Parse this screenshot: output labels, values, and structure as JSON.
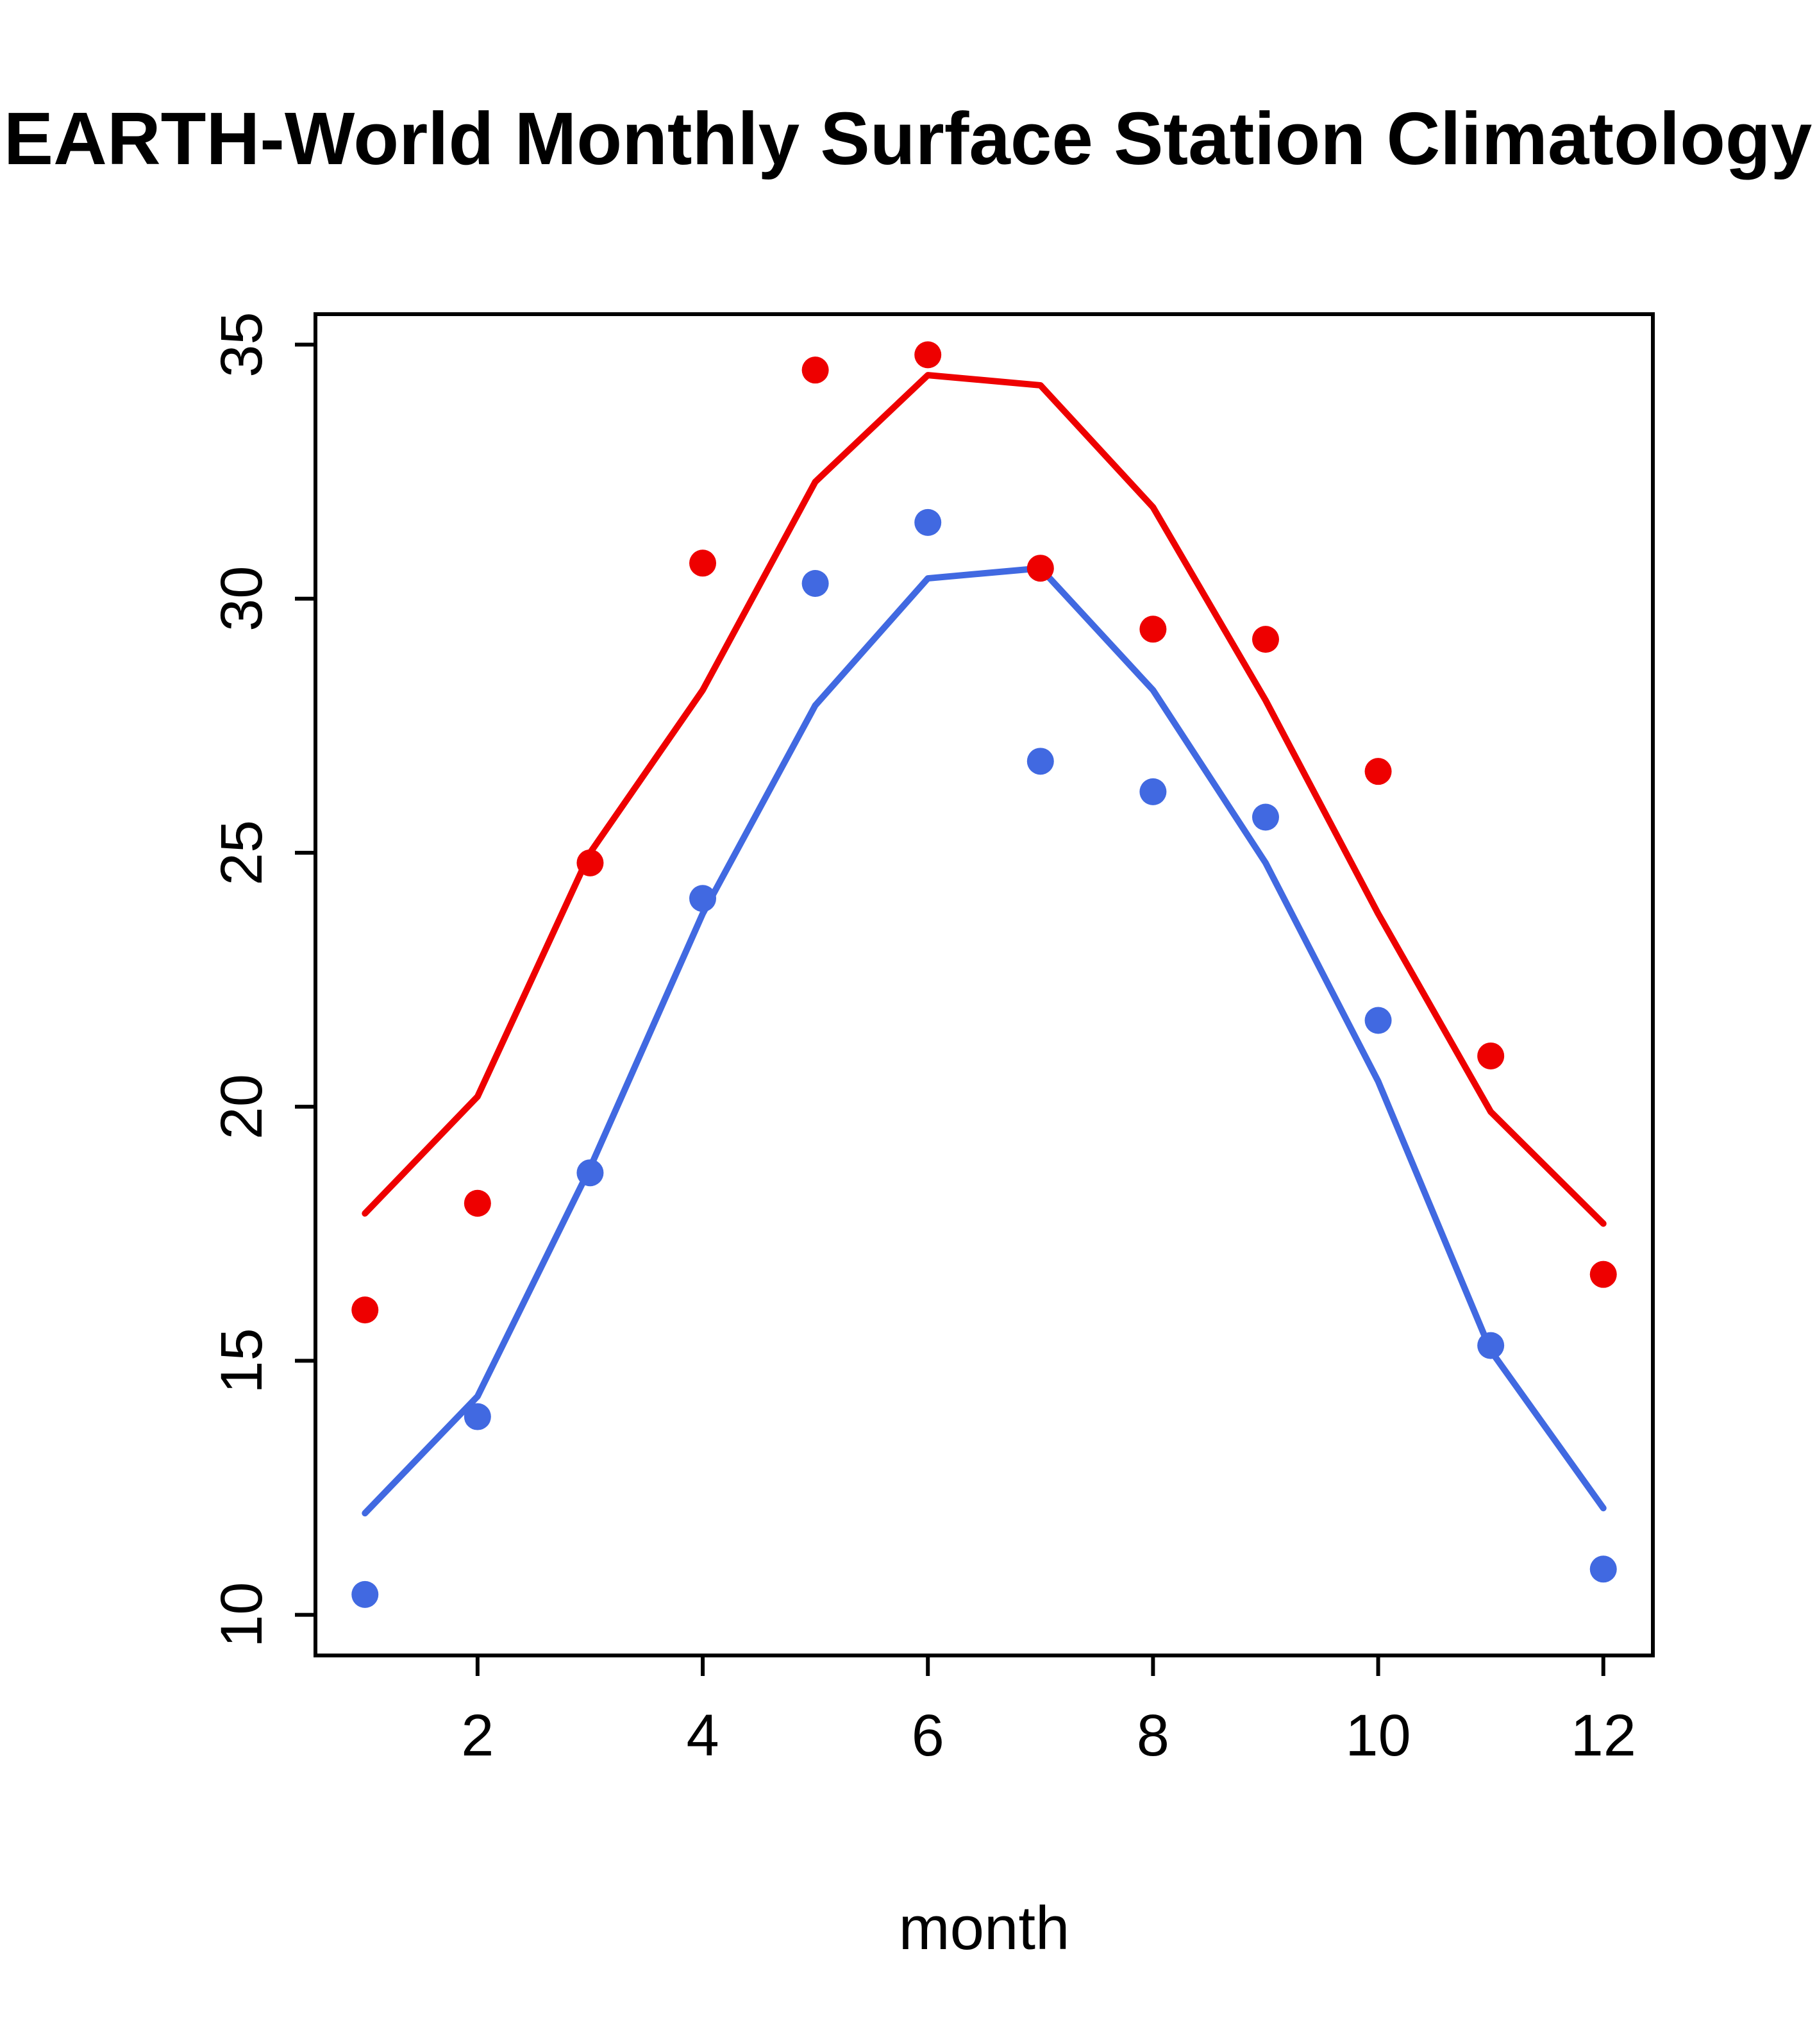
{
  "title": "EARTH-World Monthly Surface Station Climatology",
  "chart_data": {
    "type": "line",
    "title": "EARTH-World Monthly Surface Station Climatology",
    "xlabel": "month",
    "ylabel": "",
    "x": [
      1,
      2,
      3,
      4,
      5,
      6,
      7,
      8,
      9,
      10,
      11,
      12
    ],
    "series": [
      {
        "name": "red-line",
        "style": "line",
        "color": "#ee0000",
        "values": [
          17.9,
          20.2,
          25.0,
          28.2,
          32.3,
          34.4,
          34.2,
          31.8,
          28.0,
          23.8,
          19.9,
          17.7
        ]
      },
      {
        "name": "blue-line",
        "style": "line",
        "color": "#4169e1",
        "values": [
          12.0,
          14.3,
          18.8,
          23.8,
          27.9,
          30.4,
          30.6,
          28.2,
          24.8,
          20.5,
          15.2,
          12.1
        ]
      },
      {
        "name": "red-points",
        "style": "points",
        "color": "#ee0000",
        "values": [
          16.0,
          18.1,
          24.8,
          30.7,
          34.5,
          34.8,
          30.6,
          29.4,
          29.2,
          26.6,
          21.0,
          16.7
        ]
      },
      {
        "name": "blue-points",
        "style": "points",
        "color": "#4169e1",
        "values": [
          10.4,
          13.9,
          18.7,
          24.1,
          30.3,
          31.5,
          26.8,
          26.2,
          25.7,
          21.7,
          15.3,
          10.9
        ]
      }
    ],
    "xticks": [
      "2",
      "4",
      "6",
      "8",
      "10",
      "12"
    ],
    "xtick_values": [
      2,
      4,
      6,
      8,
      10,
      12
    ],
    "yticks": [
      "10",
      "15",
      "20",
      "25",
      "30",
      "35"
    ],
    "ytick_values": [
      10,
      15,
      20,
      25,
      30,
      35
    ],
    "xlim": [
      0.56,
      12.44
    ],
    "ylim": [
      9.2,
      35.6
    ],
    "grid": false,
    "legend": "none",
    "colors": {
      "red_series": "#ee0000",
      "blue_series": "#4169e1",
      "axis": "#000000",
      "background": "#ffffff"
    }
  }
}
